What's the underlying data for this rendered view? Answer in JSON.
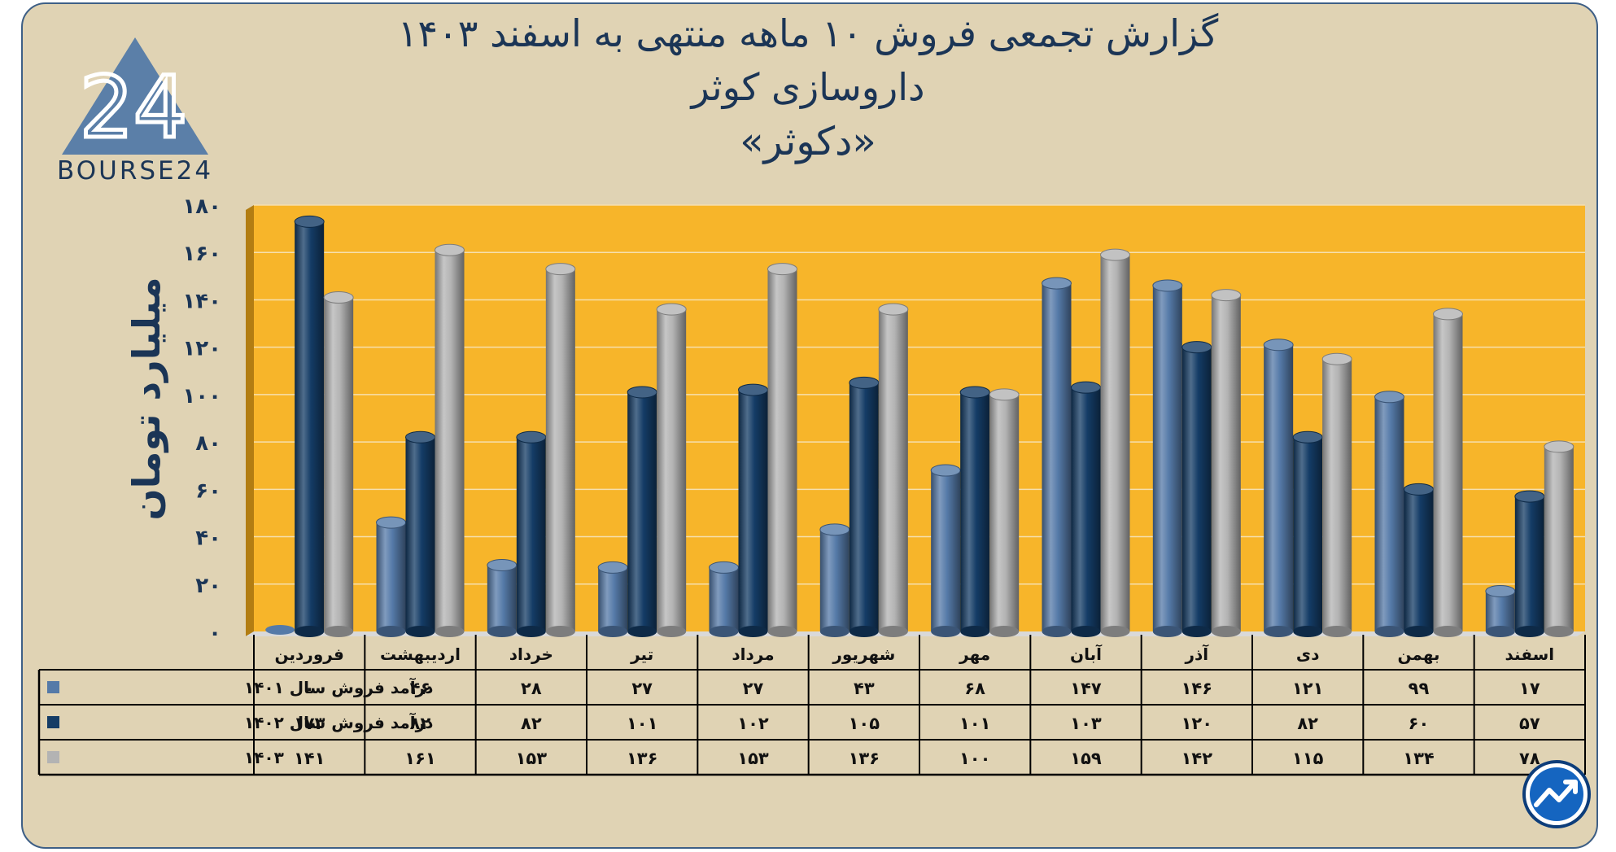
{
  "header": {
    "title_line1": "گزارش تجمعی فروش ۱۰ ماهه منتهی به اسفند ۱۴۰۳",
    "title_line2": "داروسازی کوثر",
    "title_line3": "«دکوثر»"
  },
  "logo": {
    "number": "24",
    "text": "BOURSE24"
  },
  "colors": {
    "frame_bg": "#e0d3b4",
    "plot_bg": "#f7b52a",
    "series_1401": "#557aa8",
    "series_1402": "#143c66",
    "series_1403": "#b3b3b3",
    "text_dark": "#1b3556"
  },
  "chart_data": {
    "type": "bar",
    "ylabel": "میلیارد تومان",
    "ylim": [
      0,
      180
    ],
    "yticks": [
      0,
      20,
      40,
      60,
      80,
      100,
      120,
      140,
      160,
      180
    ],
    "ytick_labels": [
      "۰",
      "۲۰",
      "۴۰",
      "۶۰",
      "۸۰",
      "۱۰۰",
      "۱۲۰",
      "۱۴۰",
      "۱۶۰",
      "۱۸۰"
    ],
    "grid": true,
    "categories": [
      "فروردین",
      "اردیبهشت",
      "خرداد",
      "تیر",
      "مرداد",
      "شهریور",
      "مهر",
      "آبان",
      "آذر",
      "دی",
      "بهمن",
      "اسفند"
    ],
    "series": [
      {
        "name": "درآمد فروش سال ۱۴۰۱",
        "color": "#557aa8",
        "values": [
          0,
          46,
          28,
          27,
          27,
          43,
          68,
          147,
          146,
          121,
          99,
          17
        ],
        "labels": [
          "۰",
          "۴۶",
          "۲۸",
          "۲۷",
          "۲۷",
          "۴۳",
          "۶۸",
          "۱۴۷",
          "۱۴۶",
          "۱۲۱",
          "۹۹",
          "۱۷"
        ]
      },
      {
        "name": "درآمد فروش سال ۱۴۰۲",
        "color": "#143c66",
        "values": [
          173,
          82,
          82,
          101,
          102,
          105,
          101,
          103,
          120,
          82,
          60,
          57
        ],
        "labels": [
          "۱۷۳",
          "۸۲",
          "۸۲",
          "۱۰۱",
          "۱۰۲",
          "۱۰۵",
          "۱۰۱",
          "۱۰۳",
          "۱۲۰",
          "۸۲",
          "۶۰",
          "۵۷"
        ]
      },
      {
        "name": "۱۴۰۳",
        "color": "#b3b3b3",
        "values": [
          141,
          161,
          153,
          136,
          153,
          136,
          100,
          159,
          142,
          115,
          134,
          78
        ],
        "labels": [
          "۱۴۱",
          "۱۶۱",
          "۱۵۳",
          "۱۳۶",
          "۱۵۳",
          "۱۳۶",
          "۱۰۰",
          "۱۵۹",
          "۱۴۲",
          "۱۱۵",
          "۱۳۴",
          "۷۸"
        ]
      }
    ]
  }
}
